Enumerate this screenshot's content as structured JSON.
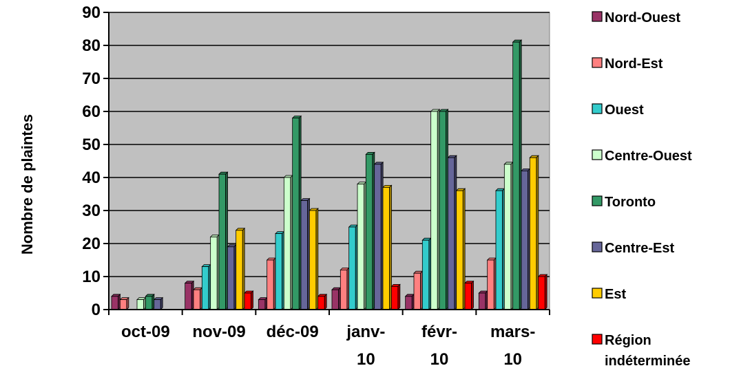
{
  "chart_data": {
    "type": "bar",
    "ylabel": "Nombre de plaintes",
    "xlabel": "",
    "ylim": [
      0,
      90
    ],
    "yticks": [
      "0",
      "10",
      "20",
      "30",
      "40",
      "50",
      "60",
      "70",
      "80",
      "90"
    ],
    "categories": [
      "oct-09",
      "nov-09",
      "déc-09",
      "janv-10",
      "févr-10",
      "mars-10"
    ],
    "category_label_lines": [
      [
        "oct-09"
      ],
      [
        "nov-09"
      ],
      [
        "déc-09"
      ],
      [
        "janv-",
        "10"
      ],
      [
        "févr-",
        "10"
      ],
      [
        "mars-",
        "10"
      ]
    ],
    "grid": true,
    "legend_position": "right",
    "series": [
      {
        "name": "Nord-Ouest",
        "color": "#993366",
        "values": [
          4,
          8,
          3,
          6,
          4,
          5
        ]
      },
      {
        "name": "Nord-Est",
        "color": "#ff8080",
        "values": [
          3,
          6,
          15,
          12,
          11,
          15
        ]
      },
      {
        "name": "Ouest",
        "color": "#33cccc",
        "values": [
          0,
          13,
          23,
          25,
          21,
          36
        ]
      },
      {
        "name": "Centre-Ouest",
        "color": "#ccffcc",
        "values": [
          3,
          22,
          40,
          38,
          60,
          44
        ]
      },
      {
        "name": "Toronto",
        "color": "#339966",
        "values": [
          4,
          41,
          58,
          47,
          60,
          81
        ]
      },
      {
        "name": "Centre-Est",
        "color": "#666699",
        "values": [
          3,
          19,
          33,
          44,
          46,
          42
        ]
      },
      {
        "name": "Est",
        "color": "#ffcc00",
        "values": [
          0,
          24,
          30,
          37,
          36,
          46
        ]
      },
      {
        "name": "Région indéterminée",
        "name_lines": [
          "Région",
          "indéterminée"
        ],
        "color": "#ff0000",
        "values": [
          0,
          5,
          4,
          7,
          8,
          10
        ]
      }
    ]
  }
}
